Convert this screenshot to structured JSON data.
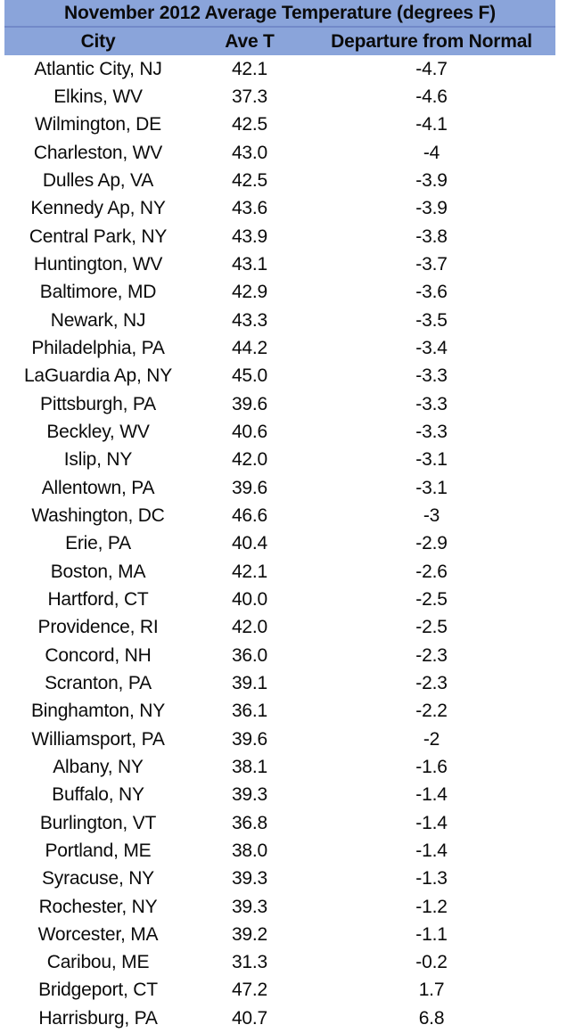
{
  "chart_data": {
    "type": "table",
    "title": "November 2012 Average Temperature (degrees F)",
    "columns": [
      "City",
      "Ave T",
      "Departure from Normal"
    ],
    "rows": [
      [
        "Atlantic City, NJ",
        "42.1",
        "-4.7"
      ],
      [
        "Elkins, WV",
        "37.3",
        "-4.6"
      ],
      [
        "Wilmington, DE",
        "42.5",
        "-4.1"
      ],
      [
        "Charleston, WV",
        "43.0",
        "-4"
      ],
      [
        "Dulles Ap, VA",
        "42.5",
        "-3.9"
      ],
      [
        "Kennedy Ap, NY",
        "43.6",
        "-3.9"
      ],
      [
        "Central Park, NY",
        "43.9",
        "-3.8"
      ],
      [
        "Huntington, WV",
        "43.1",
        "-3.7"
      ],
      [
        "Baltimore, MD",
        "42.9",
        "-3.6"
      ],
      [
        "Newark, NJ",
        "43.3",
        "-3.5"
      ],
      [
        "Philadelphia, PA",
        "44.2",
        "-3.4"
      ],
      [
        "LaGuardia Ap, NY",
        "45.0",
        "-3.3"
      ],
      [
        "Pittsburgh, PA",
        "39.6",
        "-3.3"
      ],
      [
        "Beckley, WV",
        "40.6",
        "-3.3"
      ],
      [
        "Islip, NY",
        "42.0",
        "-3.1"
      ],
      [
        "Allentown, PA",
        "39.6",
        "-3.1"
      ],
      [
        "Washington, DC",
        "46.6",
        "-3"
      ],
      [
        "Erie, PA",
        "40.4",
        "-2.9"
      ],
      [
        "Boston, MA",
        "42.1",
        "-2.6"
      ],
      [
        "Hartford, CT",
        "40.0",
        "-2.5"
      ],
      [
        "Providence, RI",
        "42.0",
        "-2.5"
      ],
      [
        "Concord, NH",
        "36.0",
        "-2.3"
      ],
      [
        "Scranton, PA",
        "39.1",
        "-2.3"
      ],
      [
        "Binghamton, NY",
        "36.1",
        "-2.2"
      ],
      [
        "Williamsport, PA",
        "39.6",
        "-2"
      ],
      [
        "Albany, NY",
        "38.1",
        "-1.6"
      ],
      [
        "Buffalo, NY",
        "39.3",
        "-1.4"
      ],
      [
        "Burlington, VT",
        "36.8",
        "-1.4"
      ],
      [
        "Portland, ME",
        "38.0",
        "-1.4"
      ],
      [
        "Syracuse, NY",
        "39.3",
        "-1.3"
      ],
      [
        "Rochester, NY",
        "39.3",
        "-1.2"
      ],
      [
        "Worcester, MA",
        "39.2",
        "-1.1"
      ],
      [
        "Caribou, ME",
        "31.3",
        "-0.2"
      ],
      [
        "Bridgeport, CT",
        "47.2",
        "1.7"
      ],
      [
        "Harrisburg, PA",
        "40.7",
        "6.8"
      ]
    ],
    "layout_hints": {
      "grid": "off",
      "header_style": "two blue banner rows (title + column headers), bold text",
      "value_alignment": "center"
    }
  },
  "style": {
    "header_bg": "#8AA4DA",
    "header_divider": "#7289C8",
    "text_color": "#0b0b0b",
    "background": "#ffffff"
  }
}
